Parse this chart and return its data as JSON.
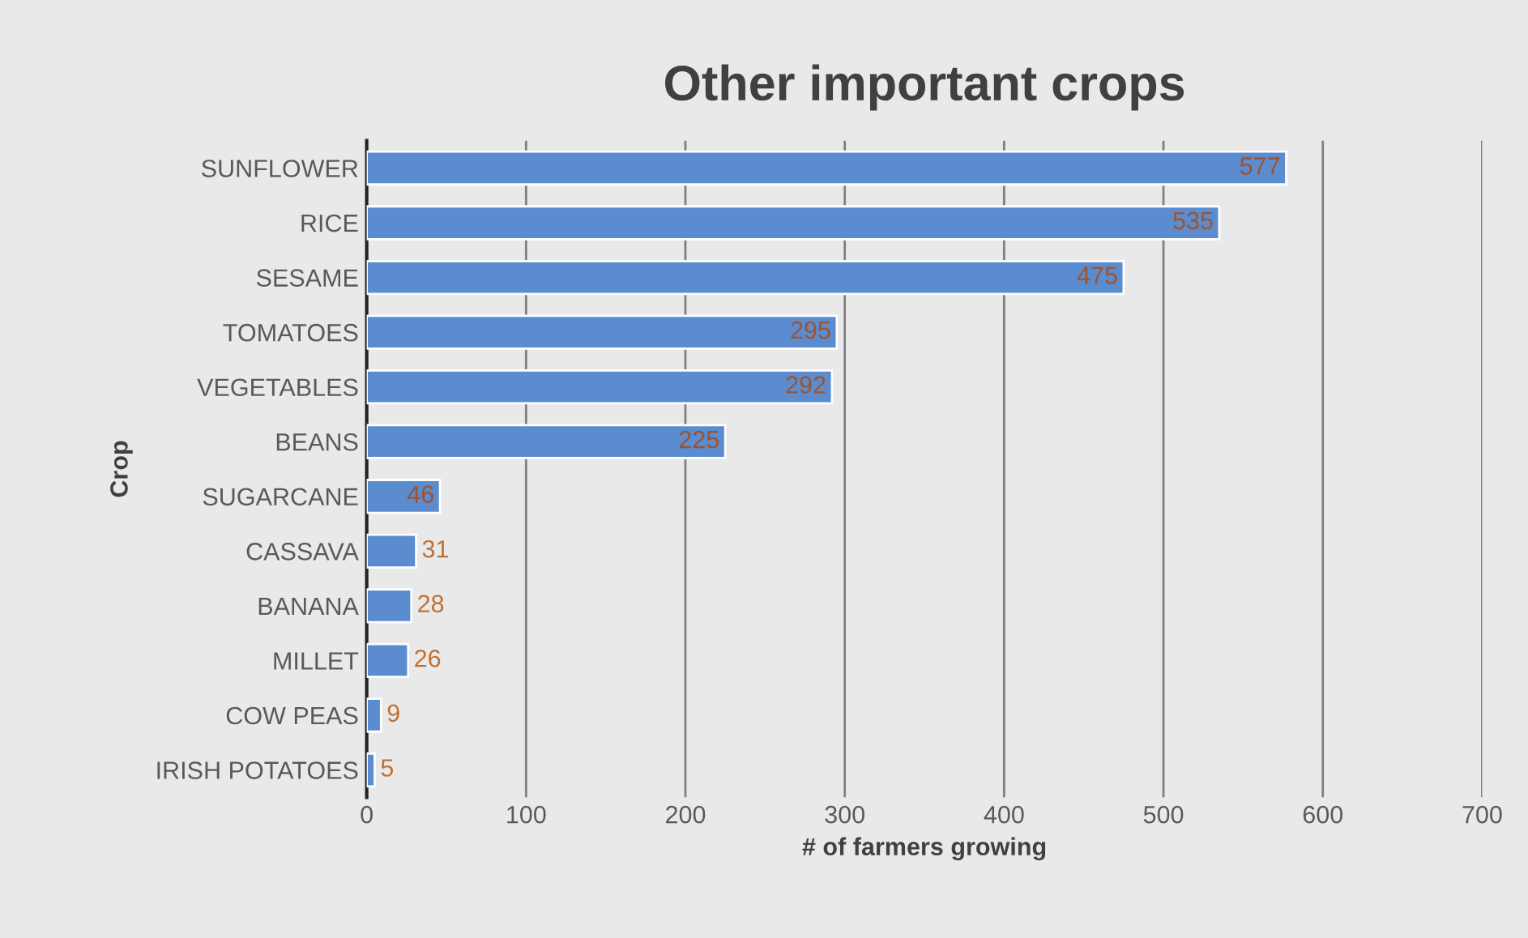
{
  "chart_data": {
    "type": "bar",
    "orientation": "horizontal",
    "title": "Other important crops",
    "xlabel": "# of farmers growing",
    "ylabel": "Crop",
    "categories": [
      "SUNFLOWER",
      "RICE",
      "SESAME",
      "TOMATOES",
      "VEGETABLES",
      "BEANS",
      "SUGARCANE",
      "CASSAVA",
      "BANANA",
      "MILLET",
      "COW PEAS",
      "IRISH POTATOES"
    ],
    "values": [
      577,
      535,
      475,
      295,
      292,
      225,
      46,
      31,
      28,
      26,
      9,
      5
    ],
    "color": "#5b8ccf",
    "xlim": [
      0,
      700
    ],
    "xticks": [
      0,
      100,
      200,
      300,
      400,
      500,
      600,
      700
    ],
    "grid": "x",
    "data_labels": true
  }
}
